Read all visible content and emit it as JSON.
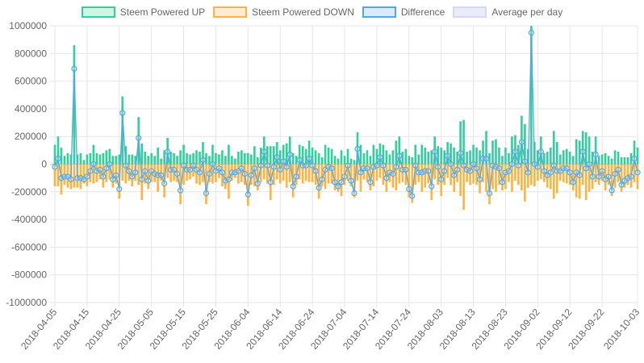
{
  "chart_data": {
    "type": "bar",
    "x_range": [
      "2018-04-05",
      "2018-10-03"
    ],
    "x_interval": "1 day",
    "xtick_labels": [
      "2018-04-05",
      "2018-04-15",
      "2018-04-25",
      "2018-05-05",
      "2018-05-15",
      "2018-05-25",
      "2018-06-04",
      "2018-06-14",
      "2018-06-24",
      "2018-07-04",
      "2018-07-14",
      "2018-07-24",
      "2018-08-03",
      "2018-08-13",
      "2018-08-23",
      "2018-09-02",
      "2018-09-12",
      "2018-09-22",
      "2018-10-03"
    ],
    "ylim": [
      -1000000,
      1000000
    ],
    "ytick_labels": [
      "1000000",
      "800000",
      "600000",
      "400000",
      "200000",
      "0",
      "-200000",
      "-400000",
      "-600000",
      "-800000",
      "-1000000"
    ],
    "grid": true,
    "legend_placement": "top",
    "series": [
      {
        "name": "Steem Powered UP",
        "type": "bar",
        "color": "#2fd19b",
        "fill": "#cdf5e6",
        "values": [
          140000,
          200000,
          120000,
          60000,
          80000,
          70000,
          860000,
          70000,
          80000,
          30000,
          70000,
          80000,
          140000,
          80000,
          70000,
          80000,
          100000,
          110000,
          60000,
          60000,
          70000,
          490000,
          130000,
          70000,
          70000,
          60000,
          340000,
          150000,
          90000,
          60000,
          80000,
          60000,
          120000,
          40000,
          100000,
          190000,
          90000,
          80000,
          60000,
          100000,
          140000,
          80000,
          70000,
          80000,
          100000,
          90000,
          160000,
          80000,
          60000,
          140000,
          80000,
          70000,
          100000,
          60000,
          140000,
          60000,
          40000,
          90000,
          100000,
          80000,
          80000,
          70000,
          130000,
          50000,
          120000,
          200000,
          130000,
          130000,
          130000,
          160000,
          100000,
          140000,
          150000,
          200000,
          80000,
          60000,
          140000,
          130000,
          110000,
          170000,
          120000,
          100000,
          80000,
          50000,
          140000,
          120000,
          110000,
          60000,
          40000,
          100000,
          60000,
          110000,
          40000,
          30000,
          230000,
          140000,
          80000,
          100000,
          60000,
          140000,
          110000,
          150000,
          140000,
          100000,
          70000,
          100000,
          170000,
          200000,
          90000,
          110000,
          60000,
          50000,
          140000,
          70000,
          140000,
          120000,
          90000,
          100000,
          200000,
          130000,
          120000,
          100000,
          160000,
          150000,
          120000,
          90000,
          310000,
          320000,
          90000,
          100000,
          140000,
          120000,
          100000,
          170000,
          240000,
          80000,
          170000,
          180000,
          120000,
          60000,
          120000,
          80000,
          200000,
          210000,
          140000,
          350000,
          290000,
          110000,
          1100000,
          160000,
          100000,
          200000,
          80000,
          90000,
          120000,
          240000,
          160000,
          70000,
          100000,
          110000,
          90000,
          60000,
          180000,
          170000,
          240000,
          230000,
          200000,
          90000,
          200000,
          60000,
          70000,
          80000,
          60000,
          40000,
          100000,
          90000,
          50000,
          50000,
          50000,
          80000,
          170000,
          120000
        ]
      },
      {
        "name": "Steem Powered DOWN",
        "type": "bar",
        "color": "#ffb23f",
        "fill": "#ffecd1",
        "values": [
          -160000,
          -160000,
          -220000,
          -150000,
          -170000,
          -180000,
          -170000,
          -170000,
          -180000,
          -140000,
          -160000,
          -130000,
          -140000,
          -130000,
          -110000,
          -170000,
          -130000,
          -110000,
          -170000,
          -140000,
          -250000,
          -120000,
          -140000,
          -120000,
          -160000,
          -120000,
          -150000,
          -260000,
          -140000,
          -180000,
          -130000,
          -130000,
          -200000,
          -120000,
          -240000,
          -100000,
          -130000,
          -120000,
          -130000,
          -290000,
          -150000,
          -120000,
          -110000,
          -90000,
          -140000,
          -150000,
          -130000,
          -290000,
          -130000,
          -140000,
          -130000,
          -100000,
          -160000,
          -180000,
          -250000,
          -120000,
          -100000,
          -140000,
          -130000,
          -150000,
          -300000,
          -150000,
          -160000,
          -190000,
          -130000,
          -110000,
          -140000,
          -260000,
          -150000,
          -110000,
          -140000,
          -120000,
          -170000,
          -130000,
          -240000,
          -150000,
          -110000,
          -140000,
          -120000,
          -130000,
          -130000,
          -150000,
          -250000,
          -160000,
          -180000,
          -140000,
          -140000,
          -190000,
          -200000,
          -230000,
          -150000,
          -120000,
          -160000,
          -240000,
          -120000,
          -200000,
          -110000,
          -130000,
          -190000,
          -160000,
          -120000,
          -100000,
          -150000,
          -200000,
          -130000,
          -170000,
          -190000,
          -140000,
          -130000,
          -150000,
          -240000,
          -280000,
          -150000,
          -130000,
          -200000,
          -170000,
          -140000,
          -260000,
          -110000,
          -150000,
          -230000,
          -150000,
          -100000,
          -150000,
          -200000,
          -130000,
          -230000,
          -330000,
          -130000,
          -150000,
          -140000,
          -150000,
          -210000,
          -130000,
          -200000,
          -290000,
          -180000,
          -200000,
          -150000,
          -190000,
          -180000,
          -130000,
          -200000,
          -120000,
          -150000,
          -190000,
          -270000,
          -170000,
          -150000,
          -160000,
          -120000,
          -110000,
          -130000,
          -170000,
          -180000,
          -250000,
          -210000,
          -120000,
          -130000,
          -140000,
          -150000,
          -190000,
          -240000,
          -250000,
          -150000,
          -260000,
          -200000,
          -180000,
          -130000,
          -150000,
          -120000,
          -190000,
          -150000,
          -230000,
          -170000,
          -130000,
          -200000,
          -170000,
          -150000,
          -170000,
          -130000,
          -180000
        ]
      },
      {
        "name": "Difference",
        "type": "line",
        "color": "#52a8e3",
        "fill": "#d7ebf9",
        "derived_from": "Steem Powered UP + Steem Powered DOWN"
      },
      {
        "name": "Average per day",
        "type": "line",
        "color": "#d6d9f5",
        "fill": "#ebecfb"
      }
    ]
  }
}
